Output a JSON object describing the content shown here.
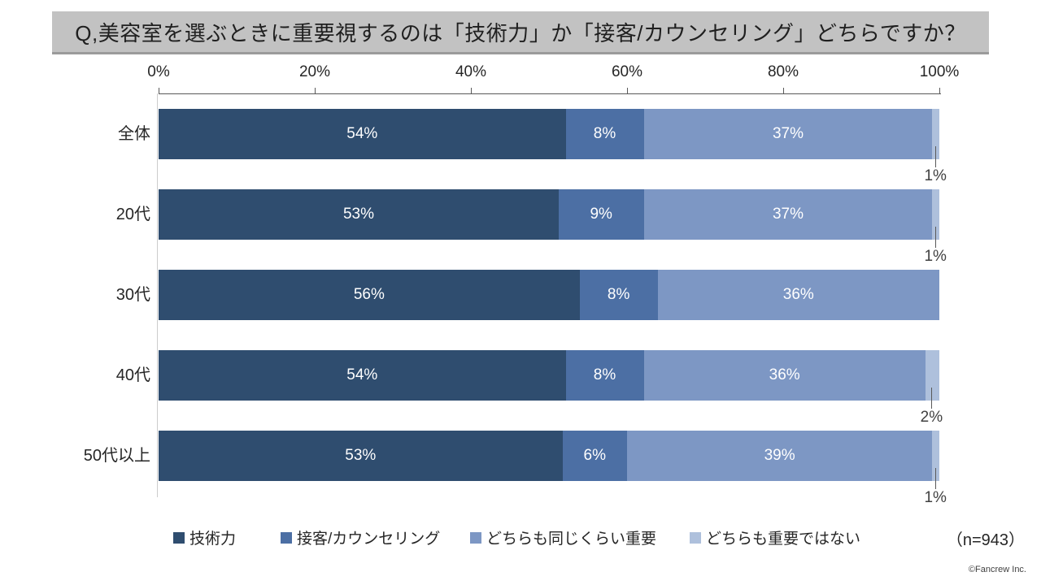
{
  "title": "Q,美容室を選ぶときに重要視するのは「技術力」か「接客/カウンセリング」どちらですか？",
  "chart_data": {
    "type": "bar",
    "subtype": "horizontal-stacked",
    "categories": [
      "全体",
      "20代",
      "30代",
      "40代",
      "50代以上"
    ],
    "series": [
      {
        "name": "技術力",
        "color": "#2f4d6f",
        "values": [
          54,
          53,
          56,
          54,
          53
        ]
      },
      {
        "name": "接客/カウンセリング",
        "color": "#4c6fa4",
        "values": [
          8,
          9,
          8,
          8,
          6
        ]
      },
      {
        "name": "どちらも同じくらい重要",
        "color": "#7d97c4",
        "values": [
          37,
          37,
          36,
          36,
          39
        ]
      },
      {
        "name": "どちらも重要ではない",
        "color": "#aec0dc",
        "values": [
          1,
          1,
          0,
          2,
          1
        ]
      }
    ],
    "x_ticks": [
      "0%",
      "20%",
      "40%",
      "60%",
      "80%",
      "100%"
    ],
    "xlim": [
      0,
      100
    ],
    "grid": false,
    "legend_position": "bottom",
    "value_label_format": "{value}%",
    "sample_size_label": "（n=943）"
  },
  "footer": {
    "copyright": "©Fancrew Inc."
  }
}
